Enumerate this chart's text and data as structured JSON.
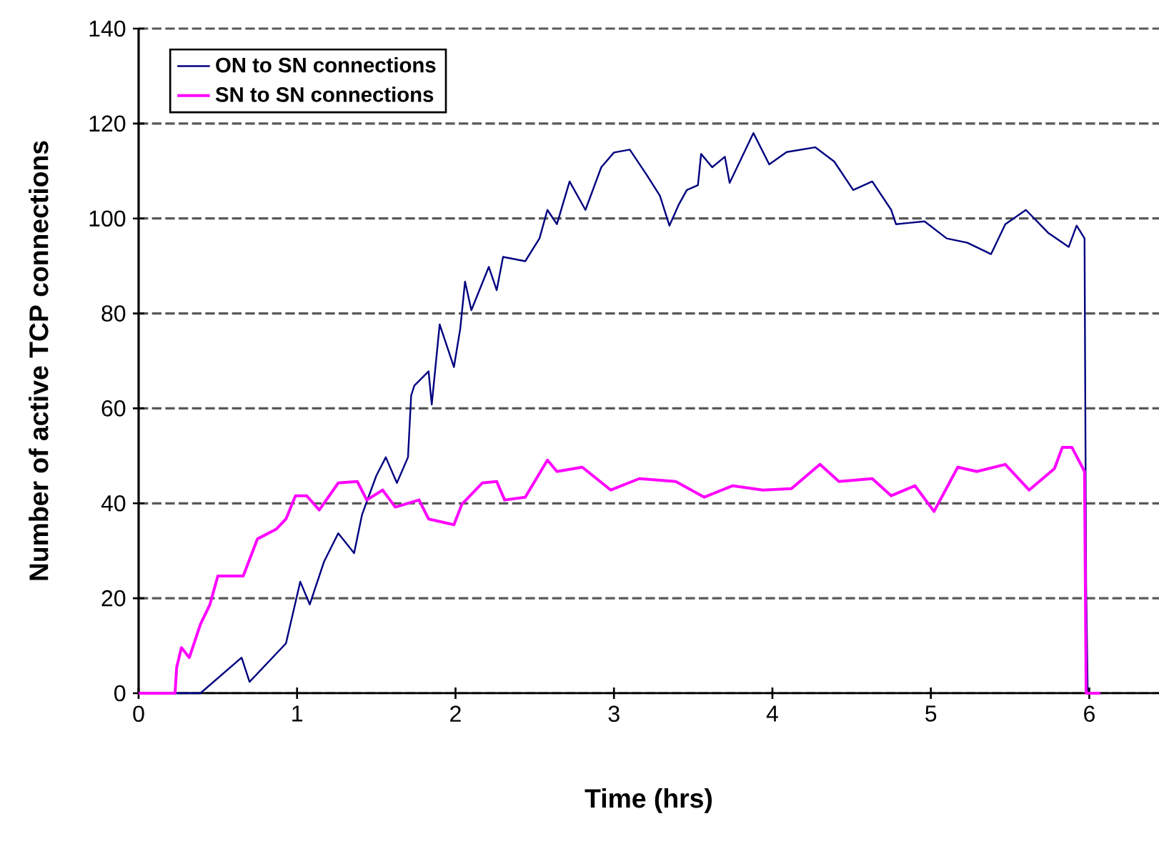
{
  "chart_data": {
    "type": "line",
    "xlabel": "Time (hrs)",
    "ylabel": "Number of active TCP connections",
    "xlim": [
      0,
      6.44
    ],
    "xticks": [
      0,
      1,
      2,
      3,
      4,
      5,
      6
    ],
    "ylim": [
      0,
      140
    ],
    "yticks": [
      0,
      20,
      40,
      60,
      80,
      100,
      120,
      140
    ],
    "grid": "y",
    "legend": "top left",
    "marker": "none",
    "line_style": "solid",
    "series": [
      {
        "name": "ON to SN connections",
        "color": "#000080",
        "x": [
          0,
          0.39,
          0.65,
          0.7,
          0.93,
          1.02,
          1.08,
          1.17,
          1.26,
          1.36,
          1.41,
          1.5,
          1.56,
          1.63,
          1.7,
          1.72,
          1.74,
          1.83,
          1.85,
          1.9,
          1.99,
          2.03,
          2.06,
          2.1,
          2.21,
          2.26,
          2.3,
          2.44,
          2.53,
          2.58,
          2.64,
          2.72,
          2.82,
          2.92,
          3.0,
          3.1,
          3.21,
          3.29,
          3.35,
          3.41,
          3.46,
          3.53,
          3.55,
          3.62,
          3.7,
          3.73,
          3.88,
          3.98,
          4.09,
          4.27,
          4.39,
          4.51,
          4.63,
          4.75,
          4.78,
          4.96,
          5.1,
          5.23,
          5.38,
          5.47,
          5.6,
          5.74,
          5.87,
          5.92,
          5.97,
          5.98,
          5.99,
          6.07
        ],
        "values": [
          0,
          0,
          7.5,
          2.4,
          10.5,
          23.5,
          18.7,
          27.7,
          33.7,
          29.5,
          37.6,
          45.8,
          49.7,
          44.3,
          49.7,
          62.7,
          64.8,
          67.8,
          60.8,
          77.7,
          68.7,
          76.8,
          86.7,
          80.7,
          89.8,
          84.9,
          91.9,
          91,
          95.8,
          101.8,
          98.8,
          107.8,
          101.8,
          110.8,
          113.9,
          114.5,
          109,
          104.8,
          98.5,
          103,
          106,
          107,
          113.6,
          110.8,
          113,
          107.5,
          118,
          111.4,
          114,
          115,
          112,
          106,
          107.8,
          101.8,
          98.8,
          99.4,
          95.8,
          94.9,
          92.5,
          98.8,
          101.8,
          97,
          94,
          98.5,
          95.8,
          23,
          0,
          0
        ]
      },
      {
        "name": "SN to SN connections",
        "color": "#ff00ff",
        "x": [
          0,
          0.23,
          0.24,
          0.27,
          0.32,
          0.39,
          0.45,
          0.5,
          0.66,
          0.75,
          0.87,
          0.93,
          0.99,
          1.06,
          1.14,
          1.26,
          1.38,
          1.44,
          1.54,
          1.62,
          1.77,
          1.83,
          1.99,
          2.04,
          2.17,
          2.26,
          2.31,
          2.44,
          2.58,
          2.64,
          2.8,
          2.98,
          3.16,
          3.39,
          3.57,
          3.75,
          3.94,
          4.12,
          4.3,
          4.42,
          4.63,
          4.75,
          4.9,
          5.02,
          5.17,
          5.29,
          5.47,
          5.62,
          5.78,
          5.83,
          5.89,
          5.97,
          5.98,
          6.07
        ],
        "values": [
          0,
          0,
          5.4,
          9.6,
          7.5,
          14.5,
          18.7,
          24.7,
          24.7,
          32.5,
          34.6,
          36.7,
          41.6,
          41.6,
          38.6,
          44.3,
          44.6,
          40.7,
          42.8,
          39.2,
          40.7,
          36.7,
          35.5,
          39.8,
          44.3,
          44.6,
          40.7,
          41.3,
          49.1,
          46.7,
          47.6,
          42.8,
          45.2,
          44.6,
          41.3,
          43.7,
          42.8,
          43.1,
          48.2,
          44.6,
          45.2,
          41.6,
          43.7,
          38.3,
          47.6,
          46.7,
          48.2,
          42.8,
          47.3,
          51.8,
          51.8,
          46.7,
          0,
          0
        ]
      }
    ]
  }
}
